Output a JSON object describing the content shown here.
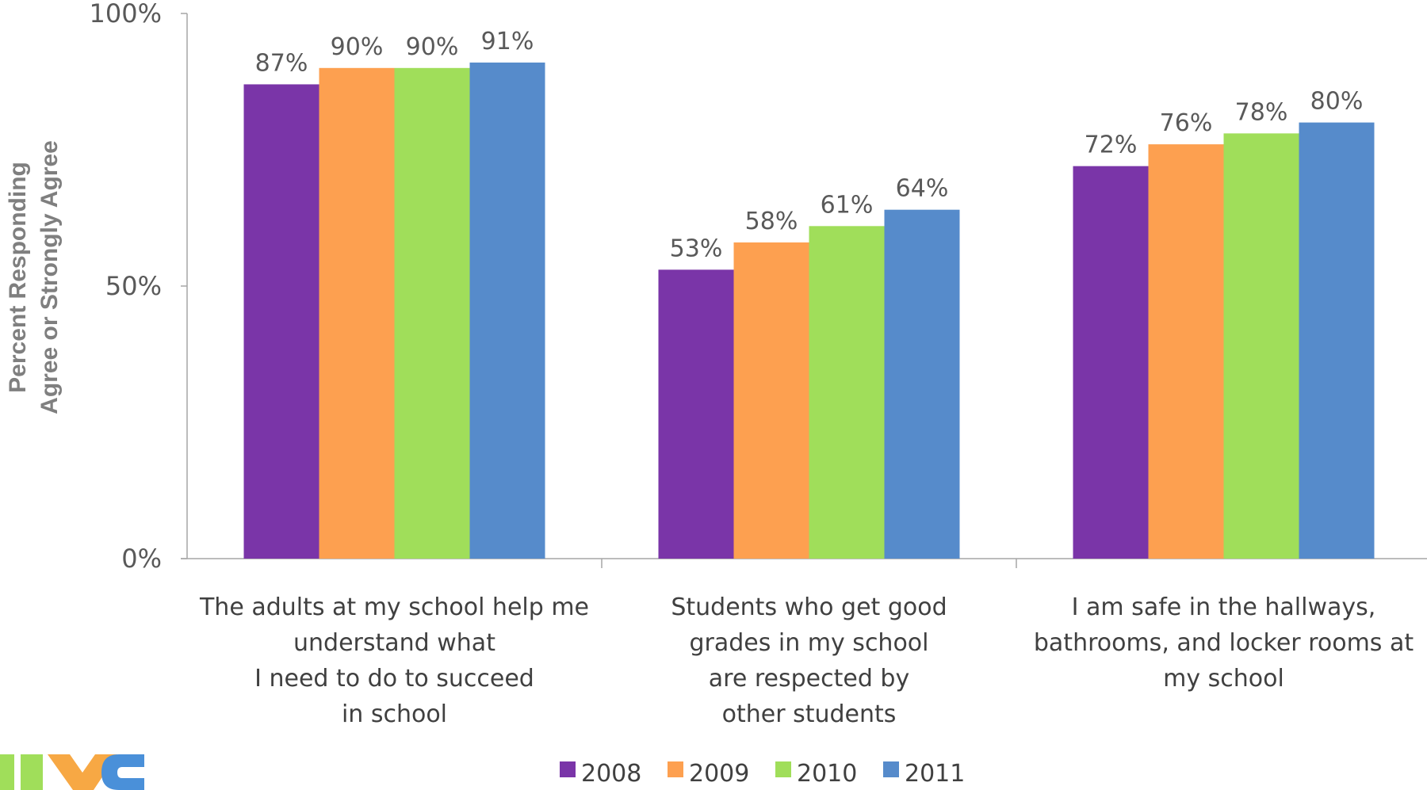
{
  "chart_data": {
    "type": "bar",
    "title": "",
    "ylabel": [
      "Percent Responding",
      "Agree or Strongly Agree"
    ],
    "xlabel": "",
    "ylim": [
      0,
      100
    ],
    "yticks": [
      {
        "value": 0,
        "label": "0%"
      },
      {
        "value": 50,
        "label": "50%"
      },
      {
        "value": 100,
        "label": "100%"
      }
    ],
    "categories": [
      [
        "The adults at my school help me",
        "understand what",
        "I need to do to succeed",
        "in school"
      ],
      [
        "Students who get good",
        "grades in my school",
        "are respected by",
        "other students"
      ],
      [
        "I am safe in the hallways,",
        "bathrooms, and locker rooms at",
        "my school"
      ]
    ],
    "series": [
      {
        "name": "2008",
        "color": "#7A35A8",
        "values": [
          87,
          53,
          72
        ],
        "labels": [
          "87%",
          "53%",
          "72%"
        ]
      },
      {
        "name": "2009",
        "color": "#FDA050",
        "values": [
          90,
          58,
          76
        ],
        "labels": [
          "90%",
          "58%",
          "76%"
        ]
      },
      {
        "name": "2010",
        "color": "#A0DE5A",
        "values": [
          90,
          61,
          78
        ],
        "labels": [
          "90%",
          "61%",
          "78%"
        ]
      },
      {
        "name": "2011",
        "color": "#568BCB",
        "values": [
          91,
          64,
          80
        ],
        "labels": [
          "91%",
          "64%",
          "80%"
        ]
      }
    ],
    "legend": "bottom",
    "grid": false
  },
  "logo": {
    "colors": [
      "#A0DE5A",
      "#F7A844",
      "#4A90D9"
    ],
    "icon": "nyc-logo-icon"
  }
}
